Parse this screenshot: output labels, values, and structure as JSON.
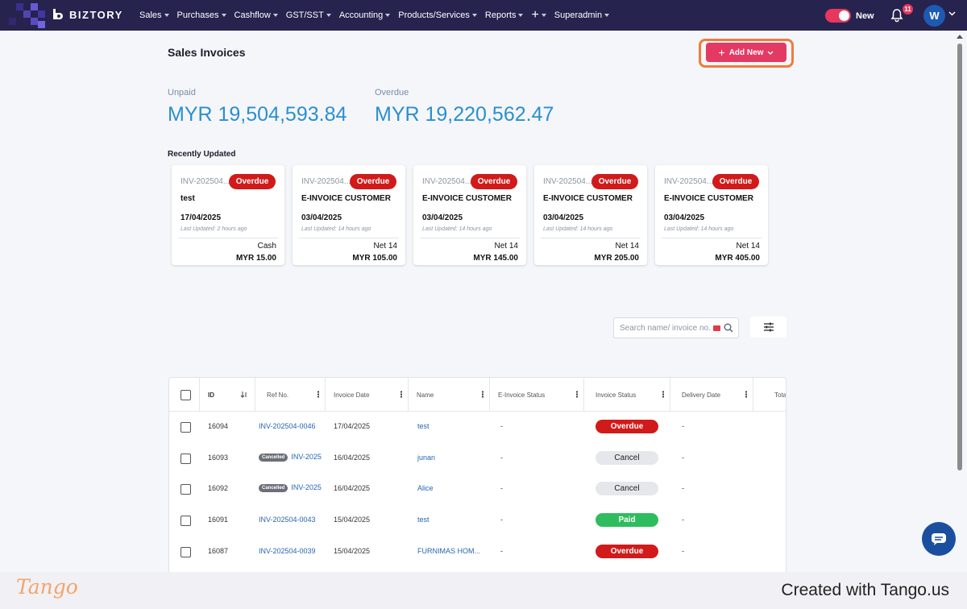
{
  "nav": {
    "logo": "BIZTORY",
    "menu": [
      {
        "label": "Sales"
      },
      {
        "label": "Purchases"
      },
      {
        "label": "Cashflow"
      },
      {
        "label": "GST/SST"
      },
      {
        "label": "Accounting"
      },
      {
        "label": "Products/Services"
      },
      {
        "label": "Reports"
      },
      {
        "label": "+"
      },
      {
        "label": "Superadmin"
      }
    ],
    "toggle_label": "New",
    "notification_count": "11",
    "avatar_initial": "W",
    "colors": {
      "bar": "#26234f",
      "accent": "#e8365d"
    }
  },
  "page": {
    "title": "Sales Invoices",
    "add_new_label": "Add New",
    "unpaid_label": "Unpaid",
    "unpaid_value": "MYR 19,504,593.84",
    "overdue_label": "Overdue",
    "overdue_value": "MYR 19,220,562.47",
    "recent_title": "Recently Updated"
  },
  "recent_cards": [
    {
      "invoice": "INV-202504...",
      "status": "Overdue",
      "name": "test",
      "date": "17/04/2025",
      "updated": "Last Updated: 2 hours ago",
      "term": "Cash",
      "amount": "MYR 15.00"
    },
    {
      "invoice": "INV-202504...",
      "status": "Overdue",
      "name": "E-INVOICE CUSTOMER",
      "date": "03/04/2025",
      "updated": "Last Updated: 14 hours ago",
      "term": "Net 14",
      "amount": "MYR 105.00"
    },
    {
      "invoice": "INV-202504...",
      "status": "Overdue",
      "name": "E-INVOICE CUSTOMER",
      "date": "03/04/2025",
      "updated": "Last Updated: 14 hours ago",
      "term": "Net 14",
      "amount": "MYR 145.00"
    },
    {
      "invoice": "INV-202504...",
      "status": "Overdue",
      "name": "E-INVOICE CUSTOMER",
      "date": "03/04/2025",
      "updated": "Last Updated: 14 hours ago",
      "term": "Net 14",
      "amount": "MYR 205.00"
    },
    {
      "invoice": "INV-202504...",
      "status": "Overdue",
      "name": "E-INVOICE CUSTOMER",
      "date": "03/04/2025",
      "updated": "Last Updated: 14 hours ago",
      "term": "Net 14",
      "amount": "MYR 405.00"
    }
  ],
  "search": {
    "placeholder": "Search name/ invoice no."
  },
  "table": {
    "headers": [
      "ID",
      "Ref No.",
      "Invoice Date",
      "Name",
      "E-Invoice Status",
      "Invoice Status",
      "Delivery Date",
      "Tota"
    ],
    "cancelled_label": "Cancelled",
    "rows": [
      {
        "id": "16094",
        "ref": "INV-202504-0046",
        "cancelled": false,
        "date": "17/04/2025",
        "name": "test",
        "einvoice": "-",
        "status": "Overdue",
        "status_type": "overdue",
        "delivery": "-"
      },
      {
        "id": "16093",
        "ref": "INV-2025",
        "cancelled": true,
        "date": "16/04/2025",
        "name": "junan",
        "einvoice": "-",
        "status": "Cancel",
        "status_type": "cancel",
        "delivery": "-"
      },
      {
        "id": "16092",
        "ref": "INV-2025",
        "cancelled": true,
        "date": "16/04/2025",
        "name": "Alice",
        "einvoice": "-",
        "status": "Cancel",
        "status_type": "cancel",
        "delivery": "-"
      },
      {
        "id": "16091",
        "ref": "INV-202504-0043",
        "cancelled": false,
        "date": "15/04/2025",
        "name": "test",
        "einvoice": "-",
        "status": "Paid",
        "status_type": "paid",
        "delivery": "-"
      },
      {
        "id": "16087",
        "ref": "INV-202504-0039",
        "cancelled": false,
        "date": "15/04/2025",
        "name": "FURNIMAS HOM...",
        "einvoice": "-",
        "status": "Overdue",
        "status_type": "overdue",
        "delivery": "-"
      }
    ]
  },
  "footer": {
    "logo": "Tango",
    "created": "Created with Tango.us"
  }
}
